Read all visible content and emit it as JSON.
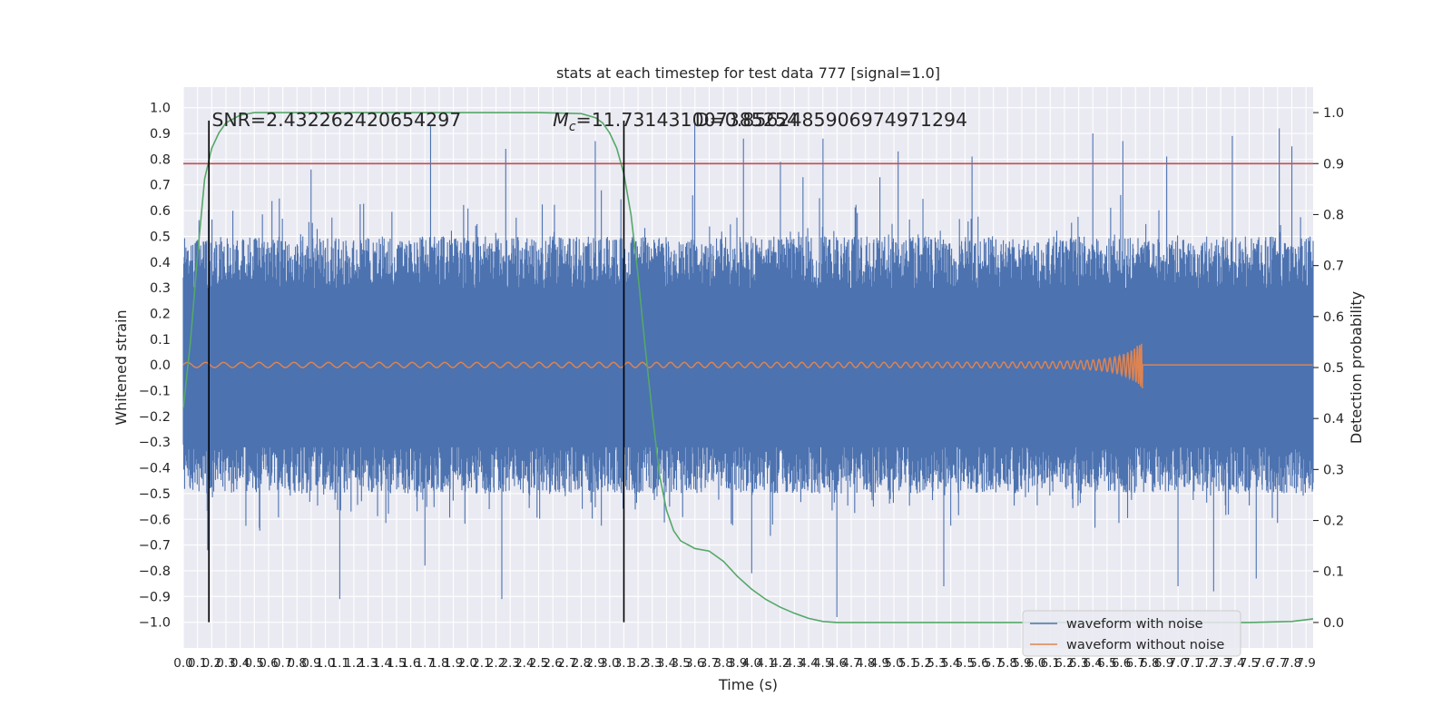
{
  "chart_data": {
    "type": "line",
    "title": "stats at each timestep for test data 777 [signal=1.0]",
    "xlabel": "Time (s)",
    "ylabel_left": "Whitened strain",
    "ylabel_right": "Detection probability",
    "xlim": [
      0.0,
      7.95
    ],
    "ylim_left": [
      -1.1,
      1.08
    ],
    "ylim_right": [
      -0.05,
      1.05
    ],
    "x_ticks": [
      "0.0",
      "0.1",
      "0.2",
      "0.3",
      "0.4",
      "0.5",
      "0.6",
      "0.7",
      "0.8",
      "0.9",
      "1.0",
      "1.1",
      "1.2",
      "1.3",
      "1.4",
      "1.5",
      "1.6",
      "1.7",
      "1.8",
      "1.9",
      "2.0",
      "2.1",
      "2.2",
      "2.3",
      "2.4",
      "2.5",
      "2.6",
      "2.7",
      "2.8",
      "2.9",
      "3.0",
      "3.1",
      "3.2",
      "3.3",
      "3.4",
      "3.5",
      "3.6",
      "3.7",
      "3.8",
      "3.9",
      "4.0",
      "4.1",
      "4.2",
      "4.3",
      "4.4",
      "4.5",
      "4.6",
      "4.7",
      "4.8",
      "4.9",
      "5.0",
      "5.1",
      "5.2",
      "5.3",
      "5.4",
      "5.5",
      "5.6",
      "5.7",
      "5.8",
      "5.9",
      "6.0",
      "6.1",
      "6.2",
      "6.3",
      "6.4",
      "6.5",
      "6.6",
      "6.7",
      "6.8",
      "6.9",
      "7.0",
      "7.1",
      "7.2",
      "7.3",
      "7.4",
      "7.5",
      "7.6",
      "7.7",
      "7.8",
      "7.9"
    ],
    "y_ticks_left": [
      "1.0",
      "0.9",
      "0.8",
      "0.7",
      "0.6",
      "0.5",
      "0.4",
      "0.3",
      "0.2",
      "0.1",
      "0.0",
      "-0.1",
      "-0.2",
      "-0.3",
      "-0.4",
      "-0.5",
      "-0.6",
      "-0.7",
      "-0.8",
      "-0.9",
      "-1.0"
    ],
    "y_ticks_right": [
      "1.0",
      "0.9",
      "0.8",
      "0.7",
      "0.6",
      "0.5",
      "0.4",
      "0.3",
      "0.2",
      "0.1",
      "0.0"
    ],
    "grid": true,
    "legend_position": "bottom-right",
    "annotations": [
      "SNR=2.432262420654297",
      "$M_c$=11.731431007385254",
      "D=0.8562485906974971294"
    ],
    "vertical_lines_x": [
      0.18,
      3.1
    ],
    "threshold_right": 0.9,
    "series": [
      {
        "name": "waveform with noise",
        "color": "#4c72b0",
        "axis": "left",
        "description": "whitened noisy strain, envelope roughly ±0.45 with peaks to ±0.95",
        "peaks_up": [
          [
            0.9,
            0.76
          ],
          [
            1.74,
            0.93
          ],
          [
            2.27,
            0.84
          ],
          [
            2.9,
            0.87
          ],
          [
            3.6,
            0.94
          ],
          [
            3.94,
            0.88
          ],
          [
            4.2,
            0.79
          ],
          [
            4.36,
            0.73
          ],
          [
            4.5,
            0.88
          ],
          [
            4.9,
            0.73
          ],
          [
            5.03,
            0.83
          ],
          [
            5.55,
            0.81
          ],
          [
            6.4,
            0.9
          ],
          [
            6.61,
            0.87
          ],
          [
            6.92,
            0.81
          ],
          [
            7.38,
            0.89
          ],
          [
            7.71,
            0.92
          ],
          [
            7.8,
            0.85
          ]
        ],
        "peaks_down": [
          [
            0.17,
            -0.72
          ],
          [
            1.1,
            -0.91
          ],
          [
            1.7,
            -0.78
          ],
          [
            2.24,
            -0.91
          ],
          [
            4.0,
            -0.81
          ],
          [
            4.6,
            -0.98
          ],
          [
            5.35,
            -0.86
          ],
          [
            7.0,
            -0.86
          ],
          [
            7.25,
            -0.88
          ],
          [
            7.55,
            -0.83
          ]
        ]
      },
      {
        "name": "waveform without noise",
        "color": "#dd8452",
        "axis": "left",
        "description": "clean chirp, amplitude ~0.01 growing to ±0.1 near merger",
        "merger_time": 6.75,
        "start_amplitude": 0.01,
        "peak_amplitude": 0.1
      },
      {
        "name": "",
        "color": "#55a868",
        "axis": "right",
        "description": "detection probability over time",
        "x": [
          0.0,
          0.05,
          0.1,
          0.15,
          0.2,
          0.25,
          0.3,
          0.4,
          0.5,
          0.7,
          1.0,
          1.5,
          2.0,
          2.5,
          2.8,
          2.9,
          2.95,
          3.0,
          3.05,
          3.1,
          3.15,
          3.2,
          3.25,
          3.3,
          3.35,
          3.4,
          3.45,
          3.5,
          3.6,
          3.7,
          3.8,
          3.9,
          4.0,
          4.1,
          4.2,
          4.3,
          4.4,
          4.5,
          4.6,
          4.7,
          5.0,
          6.0,
          7.0,
          7.5,
          7.8,
          7.95
        ],
        "y": [
          0.42,
          0.55,
          0.72,
          0.87,
          0.93,
          0.96,
          0.98,
          0.995,
          1.0,
          1.0,
          1.0,
          1.0,
          1.0,
          1.0,
          0.998,
          0.99,
          0.98,
          0.96,
          0.93,
          0.88,
          0.8,
          0.68,
          0.54,
          0.41,
          0.29,
          0.22,
          0.18,
          0.16,
          0.145,
          0.14,
          0.12,
          0.09,
          0.065,
          0.045,
          0.03,
          0.018,
          0.008,
          0.002,
          0.0,
          0.0,
          0.0,
          0.0,
          0.0,
          0.0,
          0.002,
          0.007
        ]
      }
    ]
  }
}
